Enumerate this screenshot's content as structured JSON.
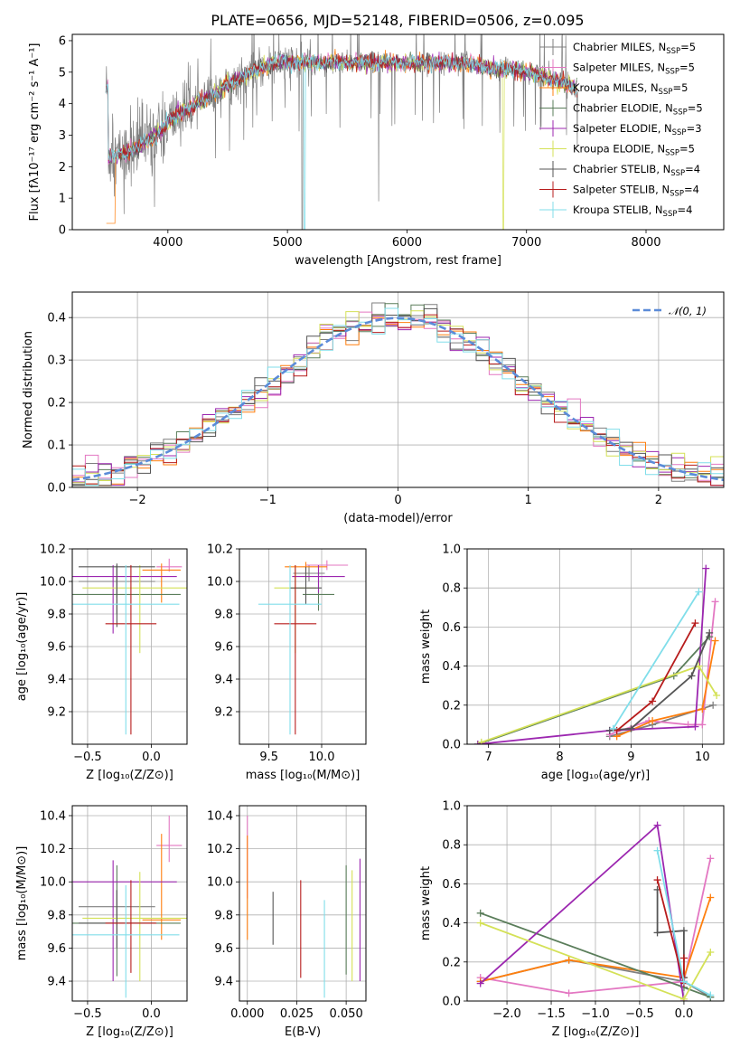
{
  "figure_title": "PLATE=0656, MJD=52148, FIBERID=0506, z=0.095",
  "colors": {
    "Chabrier MILES": "#7f7f7f",
    "Salpeter MILES": "#e377c2",
    "Kroupa MILES": "#ff7f0e",
    "Chabrier ELODIE": "#5a7d5a",
    "Salpeter ELODIE": "#9c27b0",
    "Kroupa ELODIE": "#d4e157",
    "Chabrier STELIB": "#555555",
    "Salpeter STELIB": "#b71c1c",
    "Kroupa STELIB": "#80deea"
  },
  "chart_data": [
    {
      "id": "spectrum",
      "type": "line",
      "title": "PLATE=0656, MJD=52148, FIBERID=0506, z=0.095",
      "xlabel": "wavelength [Angstrom, rest frame]",
      "ylabel": "Flux [fλ10⁻¹⁷ erg cm⁻² s⁻¹ A⁻¹]",
      "xlim": [
        3200,
        8650
      ],
      "ylim": [
        0,
        6.2
      ],
      "xticks": [
        4000,
        5000,
        6000,
        7000,
        8000
      ],
      "yticks": [
        0,
        1,
        2,
        3,
        4,
        5,
        6
      ],
      "legend_position": "right",
      "legend": [
        {
          "name": "Chabrier MILES",
          "label": "Chabrier MILES, N",
          "sub": "SSP",
          "suffix": "=5"
        },
        {
          "name": "Salpeter MILES",
          "label": "Salpeter MILES, N",
          "sub": "SSP",
          "suffix": "=5"
        },
        {
          "name": "Kroupa MILES",
          "label": "Kroupa MILES, N",
          "sub": "SSP",
          "suffix": "=5"
        },
        {
          "name": "Chabrier ELODIE",
          "label": "Chabrier ELODIE, N",
          "sub": "SSP",
          "suffix": "=5"
        },
        {
          "name": "Salpeter ELODIE",
          "label": "Salpeter ELODIE, N",
          "sub": "SSP",
          "suffix": "=3"
        },
        {
          "name": "Kroupa ELODIE",
          "label": "Kroupa ELODIE, N",
          "sub": "SSP",
          "suffix": "=5"
        },
        {
          "name": "Chabrier STELIB",
          "label": "Chabrier STELIB, N",
          "sub": "SSP",
          "suffix": "=4"
        },
        {
          "name": "Salpeter STELIB",
          "label": "Salpeter STELIB, N",
          "sub": "SSP",
          "suffix": "=4"
        },
        {
          "name": "Kroupa STELIB",
          "label": "Kroupa STELIB, N",
          "sub": "SSP",
          "suffix": "=4"
        }
      ],
      "continuum": [
        [
          3500,
          2.3
        ],
        [
          3700,
          2.5
        ],
        [
          3900,
          3.0
        ],
        [
          4000,
          3.4
        ],
        [
          4100,
          3.7
        ],
        [
          4300,
          4.1
        ],
        [
          4500,
          4.6
        ],
        [
          4700,
          5.0
        ],
        [
          4900,
          5.3
        ],
        [
          5100,
          5.3
        ],
        [
          5300,
          5.3
        ],
        [
          5500,
          5.3
        ],
        [
          5700,
          5.3
        ],
        [
          5900,
          5.3
        ],
        [
          6100,
          5.3
        ],
        [
          6300,
          5.3
        ],
        [
          6500,
          5.3
        ],
        [
          6700,
          5.1
        ],
        [
          6900,
          5.1
        ],
        [
          7100,
          4.9
        ],
        [
          7300,
          4.7
        ],
        [
          7420,
          4.5
        ]
      ],
      "data_xrange": [
        3480,
        7430
      ]
    },
    {
      "id": "residuals",
      "type": "histogram",
      "xlabel": "(data-model)/error",
      "ylabel": "Normed distribution",
      "xlim": [
        -2.5,
        2.5
      ],
      "ylim": [
        0,
        0.46
      ],
      "xticks": [
        -2,
        -1,
        0,
        1,
        2
      ],
      "yticks": [
        0.0,
        0.1,
        0.2,
        0.3,
        0.4
      ],
      "legend": [
        {
          "label": "𝒩(0, 1)",
          "style": "dashed",
          "color": "#5b8bd8"
        }
      ],
      "bin_width": 0.1,
      "reference_curve": "normal(0,1)"
    },
    {
      "id": "age_vs_Z",
      "type": "errorbar",
      "xlabel": "Z [log₁₀(Z/Z⊙)]",
      "ylabel": "age  [log₁₀(age/yr)]",
      "xlim": [
        -0.62,
        0.28
      ],
      "ylim": [
        9.0,
        10.2
      ],
      "xticks": [
        -0.5,
        0.0
      ],
      "yticks": [
        9.2,
        9.4,
        9.6,
        9.8,
        10.0,
        10.2
      ],
      "points": [
        {
          "model": "Chabrier MILES",
          "x": -0.27,
          "y": 10.0,
          "xerr": 0.3,
          "yerr": [
            0.1,
            0.1
          ]
        },
        {
          "model": "Salpeter MILES",
          "x": 0.14,
          "y": 10.09,
          "xerr": 0.1,
          "yerr": [
            0.03,
            0.05
          ]
        },
        {
          "model": "Kroupa MILES",
          "x": 0.08,
          "y": 10.07,
          "xerr": 0.15,
          "yerr": [
            0.2,
            0.04
          ]
        },
        {
          "model": "Chabrier ELODIE",
          "x": -0.27,
          "y": 9.92,
          "xerr": 0.5,
          "yerr": [
            0.12,
            0.18
          ]
        },
        {
          "model": "Salpeter ELODIE",
          "x": -0.3,
          "y": 10.03,
          "xerr": 0.5,
          "yerr": [
            0.35,
            0.07
          ]
        },
        {
          "model": "Kroupa ELODIE",
          "x": -0.09,
          "y": 9.96,
          "xerr": 0.45,
          "yerr": [
            0.4,
            0.14
          ]
        },
        {
          "model": "Chabrier STELIB",
          "x": -0.27,
          "y": 10.09,
          "xerr": 0.3,
          "yerr": [
            0.37,
            0.02
          ]
        },
        {
          "model": "Salpeter STELIB",
          "x": -0.16,
          "y": 9.74,
          "xerr": 0.2,
          "yerr": [
            0.68,
            0.36
          ]
        },
        {
          "model": "Kroupa STELIB",
          "x": -0.2,
          "y": 9.86,
          "xerr": 0.42,
          "yerr": [
            0.8,
            0.24
          ]
        }
      ]
    },
    {
      "id": "age_vs_mass",
      "type": "errorbar",
      "xlabel": "mass [log₁₀(M/M⊙)]",
      "ylabel": "",
      "xlim": [
        9.22,
        10.42
      ],
      "ylim": [
        9.0,
        10.2
      ],
      "xticks": [
        9.5,
        10.0
      ],
      "yticks": [
        9.2,
        9.4,
        9.6,
        9.8,
        10.0,
        10.2
      ],
      "points": [
        {
          "model": "Chabrier MILES",
          "x": 9.88,
          "y": 10.05,
          "xerr": 0.15,
          "yerr": [
            0.05,
            0.05
          ]
        },
        {
          "model": "Salpeter MILES",
          "x": 10.05,
          "y": 10.1,
          "xerr": 0.2,
          "yerr": [
            0.03,
            0.03
          ]
        },
        {
          "model": "Kroupa MILES",
          "x": 9.85,
          "y": 10.09,
          "xerr": 0.2,
          "yerr": [
            0.05,
            0.03
          ]
        },
        {
          "model": "Chabrier ELODIE",
          "x": 9.97,
          "y": 9.92,
          "xerr": 0.15,
          "yerr": [
            0.1,
            0.18
          ]
        },
        {
          "model": "Salpeter ELODIE",
          "x": 9.97,
          "y": 10.03,
          "xerr": 0.25,
          "yerr": [
            0.1,
            0.07
          ]
        },
        {
          "model": "Kroupa ELODIE",
          "x": 9.75,
          "y": 9.96,
          "xerr": 0.2,
          "yerr": [
            0.4,
            0.14
          ]
        },
        {
          "model": "Chabrier STELIB",
          "x": 9.85,
          "y": 9.96,
          "xerr": 0.15,
          "yerr": [
            0.1,
            0.13
          ]
        },
        {
          "model": "Salpeter STELIB",
          "x": 9.75,
          "y": 9.74,
          "xerr": 0.2,
          "yerr": [
            0.68,
            0.36
          ]
        },
        {
          "model": "Kroupa STELIB",
          "x": 9.7,
          "y": 9.86,
          "xerr": 0.3,
          "yerr": [
            0.8,
            0.24
          ]
        }
      ]
    },
    {
      "id": "weight_vs_age",
      "type": "line",
      "xlabel": "age  [log₁₀(age/yr)]",
      "ylabel": "mass weight",
      "xlim": [
        6.7,
        10.3
      ],
      "ylim": [
        0,
        1
      ],
      "xticks": [
        7,
        8,
        9,
        10
      ],
      "yticks": [
        0.0,
        0.2,
        0.4,
        0.6,
        0.8,
        1.0
      ],
      "series": [
        {
          "model": "Chabrier MILES",
          "points": [
            [
              8.7,
              0.04
            ],
            [
              9.3,
              0.1
            ],
            [
              10.15,
              0.2
            ]
          ]
        },
        {
          "model": "Salpeter MILES",
          "points": [
            [
              8.7,
              0.05
            ],
            [
              9.25,
              0.12
            ],
            [
              9.8,
              0.1
            ],
            [
              10.0,
              0.1
            ],
            [
              10.18,
              0.73
            ]
          ]
        },
        {
          "model": "Kroupa MILES",
          "points": [
            [
              8.8,
              0.04
            ],
            [
              9.3,
              0.12
            ],
            [
              10.0,
              0.18
            ],
            [
              10.18,
              0.53
            ]
          ]
        },
        {
          "model": "Chabrier ELODIE",
          "points": [
            [
              6.85,
              0.0
            ],
            [
              9.6,
              0.35
            ],
            [
              10.1,
              0.55
            ]
          ]
        },
        {
          "model": "Salpeter ELODIE",
          "points": [
            [
              6.85,
              0.0
            ],
            [
              8.7,
              0.07
            ],
            [
              9.9,
              0.09
            ],
            [
              10.05,
              0.9
            ]
          ]
        },
        {
          "model": "Kroupa ELODIE",
          "points": [
            [
              6.9,
              0.01
            ],
            [
              9.95,
              0.4
            ],
            [
              10.2,
              0.25
            ]
          ]
        },
        {
          "model": "Chabrier STELIB",
          "points": [
            [
              8.7,
              0.07
            ],
            [
              9.0,
              0.08
            ],
            [
              9.85,
              0.35
            ],
            [
              10.1,
              0.57
            ]
          ]
        },
        {
          "model": "Salpeter STELIB",
          "points": [
            [
              8.8,
              0.07
            ],
            [
              9.3,
              0.22
            ],
            [
              9.9,
              0.62
            ]
          ]
        },
        {
          "model": "Kroupa STELIB",
          "points": [
            [
              8.75,
              0.08
            ],
            [
              9.95,
              0.78
            ]
          ]
        }
      ]
    },
    {
      "id": "mass_vs_Z",
      "type": "errorbar",
      "xlabel": "Z [log₁₀(Z/Z⊙)]",
      "ylabel": "mass [log₁₀(M/M⊙)]",
      "xlim": [
        -0.62,
        0.28
      ],
      "ylim": [
        9.28,
        10.46
      ],
      "xticks": [
        -0.5,
        0.0
      ],
      "yticks": [
        9.4,
        9.6,
        9.8,
        10.0,
        10.2,
        10.4
      ],
      "points": [
        {
          "model": "Chabrier MILES",
          "x": -0.27,
          "y": 9.85,
          "xerr": 0.3,
          "yerr": [
            0.1,
            0.1
          ]
        },
        {
          "model": "Salpeter MILES",
          "x": 0.14,
          "y": 10.22,
          "xerr": 0.1,
          "yerr": [
            0.1,
            0.18
          ]
        },
        {
          "model": "Kroupa MILES",
          "x": 0.08,
          "y": 9.77,
          "xerr": 0.15,
          "yerr": [
            0.12,
            0.52
          ]
        },
        {
          "model": "Chabrier ELODIE",
          "x": -0.27,
          "y": 9.75,
          "xerr": 0.5,
          "yerr": [
            0.32,
            0.35
          ]
        },
        {
          "model": "Salpeter ELODIE",
          "x": -0.3,
          "y": 10.0,
          "xerr": 0.5,
          "yerr": [
            0.6,
            0.13
          ]
        },
        {
          "model": "Kroupa ELODIE",
          "x": -0.09,
          "y": 9.78,
          "xerr": 0.45,
          "yerr": [
            0.38,
            0.28
          ]
        },
        {
          "model": "Chabrier STELIB",
          "x": -0.27,
          "y": 9.75,
          "xerr": 0.3,
          "yerr": [
            0.15,
            0.2
          ]
        },
        {
          "model": "Salpeter STELIB",
          "x": -0.16,
          "y": 9.75,
          "xerr": 0.2,
          "yerr": [
            0.3,
            0.26
          ]
        },
        {
          "model": "Kroupa STELIB",
          "x": -0.2,
          "y": 9.68,
          "xerr": 0.42,
          "yerr": [
            0.38,
            0.3
          ]
        }
      ]
    },
    {
      "id": "mass_vs_ebv",
      "type": "errorbar",
      "xlabel": "E(B-V)",
      "ylabel": "",
      "xlim": [
        -0.004,
        0.06
      ],
      "ylim": [
        9.28,
        10.46
      ],
      "xticks": [
        0.0,
        0.025,
        0.05
      ],
      "xticklabels": [
        "0.000",
        "0.025",
        "0.050"
      ],
      "yticks": [
        9.4,
        9.6,
        9.8,
        10.0,
        10.2,
        10.4
      ],
      "points": [
        {
          "model": "Salpeter MILES",
          "x": 0.0,
          "y": 10.1,
          "yerr": [
            0.2,
            0.3
          ]
        },
        {
          "model": "Kroupa MILES",
          "x": 0.0,
          "y": 9.98,
          "yerr": [
            0.33,
            0.3
          ]
        },
        {
          "model": "Chabrier STELIB",
          "x": 0.013,
          "y": 9.78,
          "yerr": [
            0.16,
            0.16
          ]
        },
        {
          "model": "Salpeter STELIB",
          "x": 0.027,
          "y": 9.7,
          "yerr": [
            0.28,
            0.31
          ]
        },
        {
          "model": "Kroupa STELIB",
          "x": 0.039,
          "y": 9.6,
          "yerr": [
            0.3,
            0.29
          ]
        },
        {
          "model": "Chabrier ELODIE",
          "x": 0.05,
          "y": 9.77,
          "yerr": [
            0.33,
            0.33
          ]
        },
        {
          "model": "Kroupa ELODIE",
          "x": 0.053,
          "y": 9.72,
          "yerr": [
            0.32,
            0.35
          ]
        },
        {
          "model": "Salpeter ELODIE",
          "x": 0.057,
          "y": 9.76,
          "yerr": [
            0.36,
            0.38
          ]
        }
      ]
    },
    {
      "id": "weight_vs_Z",
      "type": "line",
      "xlabel": "Z [log₁₀(Z/Z⊙)]",
      "ylabel": "mass weight",
      "xlim": [
        -2.45,
        0.45
      ],
      "ylim": [
        0,
        1
      ],
      "xticks": [
        -2.0,
        -1.5,
        -1.0,
        -0.5,
        0.0
      ],
      "yticks": [
        0.0,
        0.2,
        0.4,
        0.6,
        0.8,
        1.0
      ],
      "series": [
        {
          "model": "Chabrier MILES",
          "points": [
            [
              -2.3,
              0.1
            ],
            [
              -1.3,
              0.21
            ],
            [
              0.0,
              0.1
            ],
            [
              0.3,
              0.02
            ]
          ]
        },
        {
          "model": "Salpeter MILES",
          "points": [
            [
              -2.3,
              0.12
            ],
            [
              -1.3,
              0.04
            ],
            [
              0.0,
              0.1
            ],
            [
              0.3,
              0.73
            ]
          ]
        },
        {
          "model": "Kroupa MILES",
          "points": [
            [
              -2.3,
              0.1
            ],
            [
              -1.3,
              0.21
            ],
            [
              0.0,
              0.12
            ],
            [
              0.3,
              0.53
            ]
          ]
        },
        {
          "model": "Chabrier ELODIE",
          "points": [
            [
              -2.3,
              0.45
            ],
            [
              0.0,
              0.07
            ],
            [
              0.3,
              0.02
            ]
          ]
        },
        {
          "model": "Salpeter ELODIE",
          "points": [
            [
              -2.3,
              0.09
            ],
            [
              -0.3,
              0.9
            ],
            [
              0.0,
              0.0
            ]
          ]
        },
        {
          "model": "Kroupa ELODIE",
          "points": [
            [
              -2.3,
              0.4
            ],
            [
              0.0,
              0.01
            ],
            [
              0.3,
              0.25
            ]
          ]
        },
        {
          "model": "Chabrier STELIB",
          "points": [
            [
              -0.3,
              0.57
            ],
            [
              -0.3,
              0.35
            ],
            [
              0.0,
              0.36
            ],
            [
              0.0,
              0.12
            ]
          ]
        },
        {
          "model": "Salpeter STELIB",
          "points": [
            [
              -0.3,
              0.62
            ],
            [
              0.0,
              0.09
            ],
            [
              0.0,
              0.22
            ]
          ]
        },
        {
          "model": "Kroupa STELIB",
          "points": [
            [
              -0.3,
              0.77
            ],
            [
              0.0,
              0.1
            ],
            [
              0.3,
              0.03
            ]
          ]
        }
      ]
    }
  ]
}
